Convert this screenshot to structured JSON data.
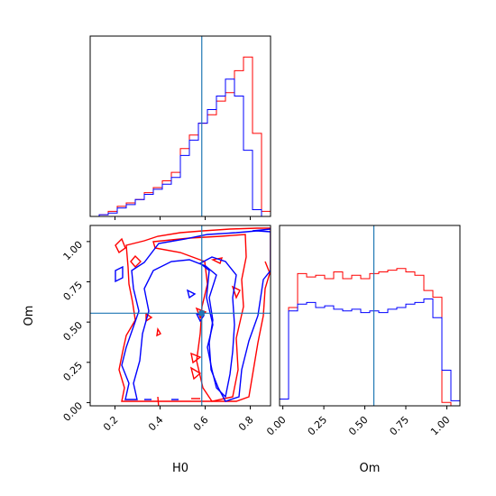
{
  "chart_data": {
    "type": "corner",
    "parameters": [
      "H0",
      "Om"
    ],
    "truth": {
      "H0": 0.585,
      "Om": 0.555
    },
    "colors": {
      "red": "#ff0000",
      "blue": "#0000ff",
      "truth": "#1f77b4"
    },
    "x_ticks": {
      "H0": [
        0.2,
        0.4,
        0.6,
        0.8
      ],
      "H0_labels": [
        "0.2",
        "0.4",
        "0.6",
        "0.8"
      ],
      "Om": [
        0.0,
        0.25,
        0.5,
        0.75,
        1.0
      ],
      "Om_labels": [
        "0.00",
        "0.25",
        "0.50",
        "0.75",
        "1.00"
      ]
    },
    "y_ticks": {
      "Om": [
        0.0,
        0.25,
        0.5,
        0.75,
        1.0
      ],
      "Om_labels": [
        "0.00",
        "0.25",
        "0.50",
        "0.75",
        "1.00"
      ]
    },
    "xlabels": {
      "H0": "H0",
      "Om": "Om"
    },
    "ylabel": "Om",
    "xlim": {
      "H0": [
        0.09,
        0.89
      ],
      "Om": [
        -0.02,
        1.08
      ]
    },
    "ylim_scatter": [
      -0.02,
      1.1
    ],
    "hist_H0": {
      "edges": [
        0.09,
        0.13,
        0.17,
        0.21,
        0.25,
        0.29,
        0.33,
        0.37,
        0.41,
        0.45,
        0.49,
        0.53,
        0.57,
        0.61,
        0.65,
        0.69,
        0.73,
        0.77,
        0.81,
        0.85,
        0.89
      ],
      "red": [
        0,
        0.01,
        0.03,
        0.06,
        0.08,
        0.1,
        0.14,
        0.17,
        0.21,
        0.26,
        0.4,
        0.48,
        0.55,
        0.6,
        0.68,
        0.73,
        0.86,
        0.94,
        0.49,
        0.03
      ],
      "blue": [
        0,
        0.01,
        0.02,
        0.05,
        0.07,
        0.1,
        0.13,
        0.16,
        0.19,
        0.23,
        0.36,
        0.45,
        0.55,
        0.63,
        0.71,
        0.81,
        0.71,
        0.39,
        0.04,
        0.0
      ]
    },
    "hist_Om": {
      "edges": [
        -0.02,
        0.035,
        0.09,
        0.145,
        0.2,
        0.255,
        0.31,
        0.365,
        0.42,
        0.475,
        0.53,
        0.585,
        0.64,
        0.695,
        0.75,
        0.805,
        0.86,
        0.915,
        0.97,
        1.025,
        1.08
      ],
      "red": [
        0.04,
        0.58,
        0.78,
        0.76,
        0.77,
        0.75,
        0.79,
        0.75,
        0.77,
        0.75,
        0.78,
        0.79,
        0.8,
        0.81,
        0.79,
        0.77,
        0.68,
        0.64,
        0.02,
        0.0
      ],
      "blue": [
        0.04,
        0.56,
        0.6,
        0.61,
        0.58,
        0.59,
        0.57,
        0.56,
        0.57,
        0.55,
        0.56,
        0.55,
        0.57,
        0.58,
        0.6,
        0.61,
        0.63,
        0.52,
        0.21,
        0.03
      ]
    }
  }
}
